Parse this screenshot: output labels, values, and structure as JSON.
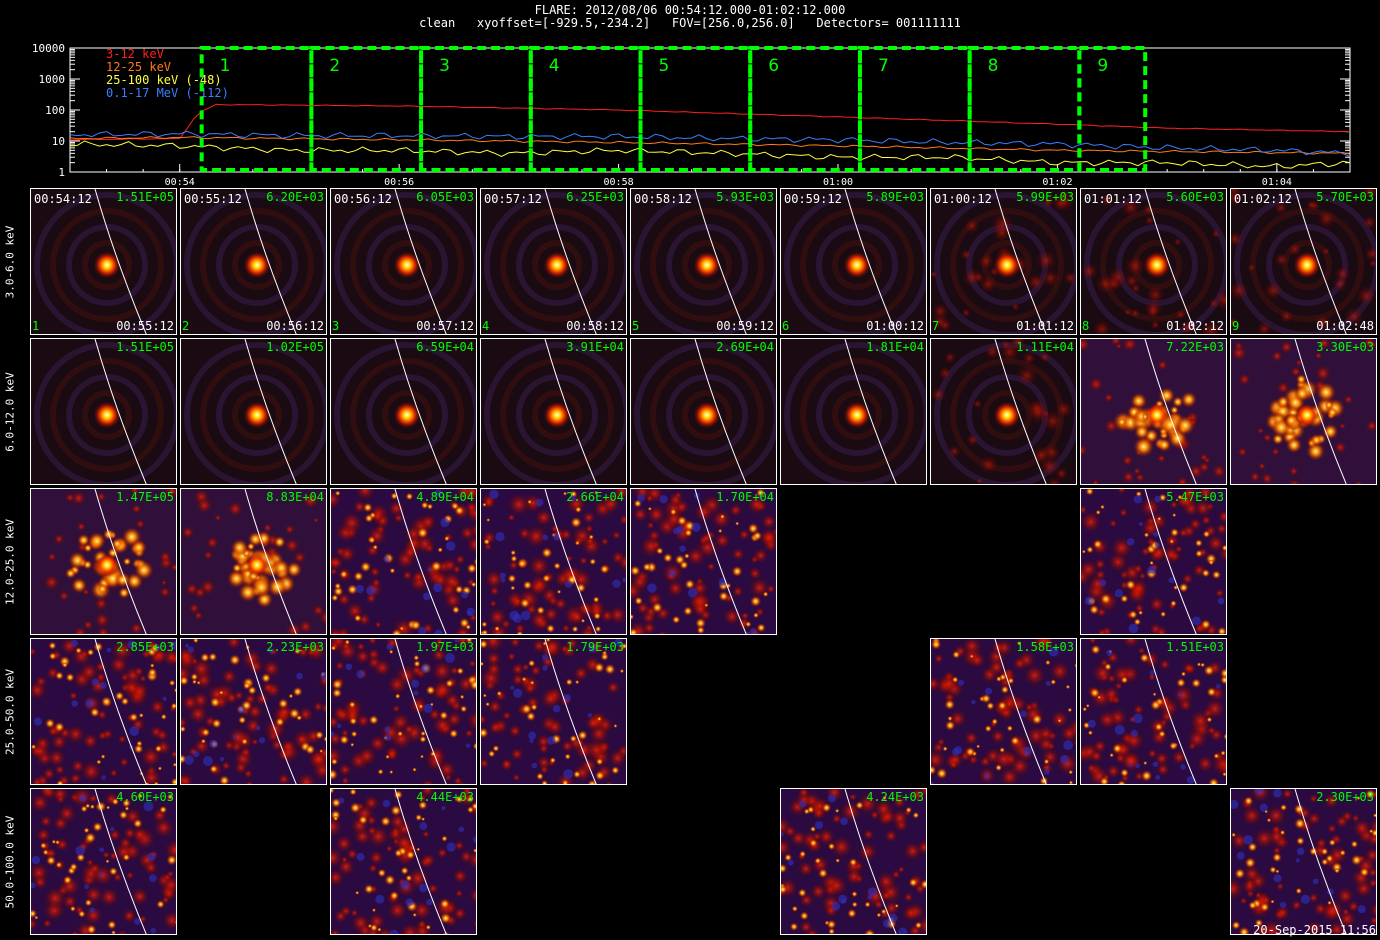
{
  "header": {
    "title": "FLARE: 2012/08/06 00:54:12.000-01:02:12.000",
    "subtitle": "clean   xyoffset=[-929.5,-234.2]   FOV=[256.0,256.0]   Detectors= 001111111"
  },
  "chart_data": {
    "type": "line",
    "title": "",
    "xlabel": "",
    "ylabel": "",
    "yscale": "log",
    "ylim": [
      1,
      10000
    ],
    "xlim": [
      "00:53:00",
      "01:04:40"
    ],
    "xticks": [
      "00:54",
      "00:56",
      "00:58",
      "01:00",
      "01:02",
      "01:04"
    ],
    "yticks": [
      "1",
      "10",
      "100",
      "1000",
      "10000"
    ],
    "legend_position": "top-left",
    "series": [
      {
        "name": "3-12 keV",
        "color": "#ff2020",
        "x": [
          "00:53:00",
          "00:54:00",
          "00:54:10",
          "00:54:20",
          "00:56:00",
          "00:58:00",
          "01:00:00",
          "01:02:00",
          "01:03:00",
          "01:04:40"
        ],
        "y": [
          11,
          12,
          80,
          150,
          135,
          100,
          60,
          35,
          26,
          20
        ]
      },
      {
        "name": "12-25 keV",
        "color": "#ff7a1a",
        "x": [
          "00:53:00",
          "00:54:00",
          "00:56:00",
          "00:58:00",
          "01:00:00",
          "01:02:00",
          "01:04:40"
        ],
        "y": [
          12,
          13,
          11,
          9,
          7,
          5,
          4
        ]
      },
      {
        "name": "25-100 keV (-48)",
        "color": "#ffff40",
        "x": [
          "00:53:00",
          "00:54:00",
          "00:55:00",
          "00:56:00",
          "00:57:00",
          "00:58:00",
          "00:59:00",
          "01:00:00",
          "01:01:00",
          "01:02:00",
          "01:03:00",
          "01:04:00",
          "01:04:40"
        ],
        "y": [
          8,
          7,
          5,
          5,
          4,
          5,
          4,
          3,
          3,
          2,
          2,
          1.5,
          2
        ]
      },
      {
        "name": "0.1-17 MeV (-112)",
        "color": "#3a7fff",
        "x": [
          "00:53:00",
          "00:54:00",
          "00:55:00",
          "00:56:00",
          "00:57:00",
          "00:58:00",
          "00:59:00",
          "01:00:00",
          "01:01:00",
          "01:02:00",
          "01:03:00",
          "01:04:00",
          "01:04:40"
        ],
        "y": [
          16,
          17,
          15,
          15,
          14,
          14,
          12,
          11,
          9,
          8,
          6,
          5,
          4
        ]
      }
    ],
    "intervals": [
      {
        "label": "1",
        "start": "00:54:12",
        "end": "00:55:12"
      },
      {
        "label": "2",
        "start": "00:55:12",
        "end": "00:56:12"
      },
      {
        "label": "3",
        "start": "00:56:12",
        "end": "00:57:12"
      },
      {
        "label": "4",
        "start": "00:57:12",
        "end": "00:58:12"
      },
      {
        "label": "5",
        "start": "00:58:12",
        "end": "00:59:12"
      },
      {
        "label": "6",
        "start": "00:59:12",
        "end": "01:00:12"
      },
      {
        "label": "7",
        "start": "01:00:12",
        "end": "01:01:12"
      },
      {
        "label": "8",
        "start": "01:01:12",
        "end": "01:02:12"
      },
      {
        "label": "9",
        "start": "01:02:12",
        "end": "01:02:48"
      }
    ],
    "interval_color": "#00ff00"
  },
  "image_grid": {
    "bands": [
      "3.0-6.0 keV",
      "6.0-12.0 keV",
      "12.0-25.0 keV",
      "25.0-50.0 keV",
      "50.0-100.0 keV"
    ],
    "start_times": [
      "00:54:12",
      "00:55:12",
      "00:56:12",
      "00:57:12",
      "00:58:12",
      "00:59:12",
      "01:00:12",
      "01:01:12",
      "01:02:12"
    ],
    "end_times": [
      "00:55:12",
      "00:56:12",
      "00:57:12",
      "00:58:12",
      "00:59:12",
      "01:00:12",
      "01:01:12",
      "01:02:12",
      "01:02:48"
    ],
    "indices": [
      "1",
      "2",
      "3",
      "4",
      "5",
      "6",
      "7",
      "8",
      "9"
    ],
    "peaks": [
      [
        "1.51E+05",
        "6.20E+03",
        "6.05E+03",
        "6.25E+03",
        "5.93E+03",
        "5.89E+03",
        "5.99E+03",
        "5.60E+03",
        "5.70E+03"
      ],
      [
        "1.51E+05",
        "1.02E+05",
        "6.59E+04",
        "3.91E+04",
        "2.69E+04",
        "1.81E+04",
        "1.11E+04",
        "7.22E+03",
        "3.30E+03"
      ],
      [
        "1.47E+05",
        "8.83E+04",
        "4.89E+04",
        "2.66E+04",
        "1.70E+04",
        null,
        null,
        "5.47E+03",
        null
      ],
      [
        "2.85E+03",
        "2.23E+03",
        "1.97E+03",
        "1.79E+03",
        null,
        null,
        "1.58E+03",
        "1.51E+03",
        null
      ],
      [
        "4.60E+03",
        null,
        "4.44E+03",
        null,
        null,
        "4.24E+03",
        null,
        null,
        "2.30E+03"
      ]
    ],
    "image_style": [
      [
        "compact",
        "compact",
        "compact",
        "compact",
        "compact",
        "compact",
        "compact-diffuse",
        "compact-diffuse",
        "compact-diffuse"
      ],
      [
        "compact",
        "compact",
        "compact",
        "compact",
        "compact",
        "compact",
        "compact-diffuse",
        "extended",
        "extended"
      ],
      [
        "extended",
        "extended",
        "noise",
        "noise",
        "noise",
        null,
        null,
        "noise",
        null
      ],
      [
        "noise",
        "noise",
        "noise",
        "noise",
        null,
        null,
        "noise",
        "noise",
        null
      ],
      [
        "noise",
        null,
        "noise",
        null,
        null,
        "noise",
        null,
        null,
        "noise"
      ]
    ],
    "limb_color": "#ffffff"
  },
  "datestamp": "20-Sep-2015 11:56"
}
